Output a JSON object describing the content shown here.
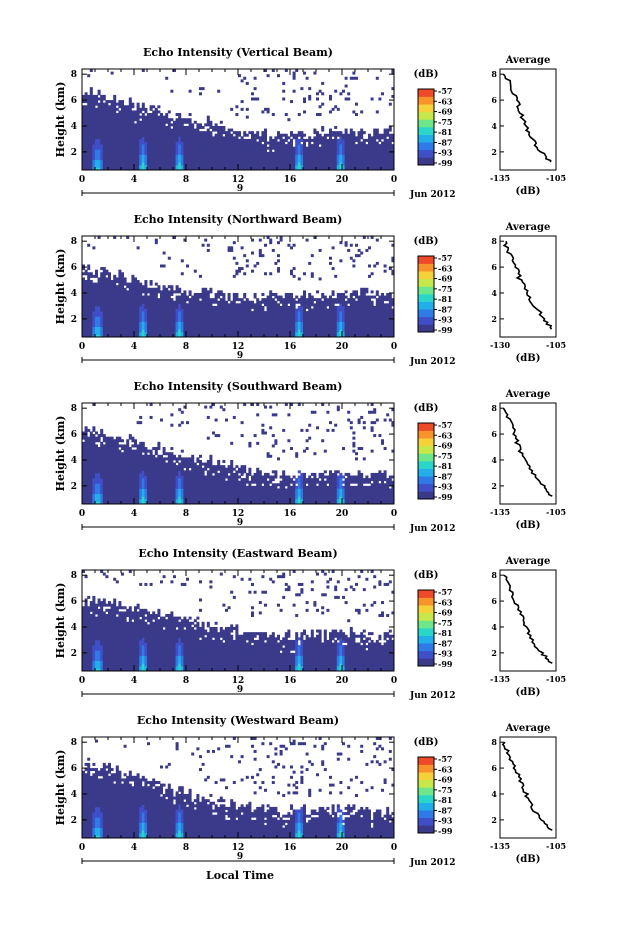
{
  "figure": {
    "date_label": "Jun 2012",
    "xlabel": "Local Time",
    "colorbar_unit": "(dB)",
    "colorbar_ticks": [
      "-57",
      "-63",
      "-69",
      "-75",
      "-81",
      "-87",
      "-93",
      "-99"
    ],
    "colormap": [
      "#3b3a8a",
      "#3f4fc8",
      "#2f7ae6",
      "#22aee8",
      "#2ad6c8",
      "#6ee68a",
      "#c6e84a",
      "#f6d23a",
      "#f8932c",
      "#ee4a2a"
    ],
    "profile_title": "Average",
    "profile_xlabel": "(dB)"
  },
  "chart_data": [
    {
      "type": "heatmap",
      "title": "Echo Intensity (Vertical Beam)",
      "ylabel": "Height (km)",
      "x_ticks": [
        "0",
        "4",
        "8",
        "12",
        "16",
        "20",
        "0"
      ],
      "x_day_label": "9",
      "y_ticks": [
        "2",
        "4",
        "6",
        "8"
      ],
      "xlim": [
        0,
        24
      ],
      "ylim": [
        0.6,
        8.4
      ],
      "top_height_km": [
        6.5,
        6.3,
        5.9,
        5.7,
        5.4,
        5.2,
        4.9,
        4.7,
        4.5,
        4.3,
        4.1,
        3.8,
        3.5,
        3.4,
        3.3,
        3.3,
        3.3,
        3.4,
        3.5,
        3.6,
        3.6,
        3.5,
        3.5,
        3.5
      ],
      "strong_echo_time_h": [
        1.1,
        4.6,
        7.4,
        16.6,
        19.8
      ],
      "profile": {
        "heights": [
          8.0,
          7.0,
          6.0,
          5.0,
          4.0,
          3.0,
          2.0,
          1.2
        ],
        "values": [
          -132,
          -129,
          -126,
          -124,
          -121,
          -118,
          -113,
          -108
        ],
        "xlim": [
          -135,
          -105
        ],
        "xticks": [
          "-135",
          "-105"
        ]
      }
    },
    {
      "type": "heatmap",
      "title": "Echo Intensity (Northward Beam)",
      "ylabel": "Height (km)",
      "x_ticks": [
        "0",
        "4",
        "8",
        "12",
        "16",
        "20",
        "0"
      ],
      "x_day_label": "9",
      "y_ticks": [
        "2",
        "4",
        "6",
        "8"
      ],
      "xlim": [
        0,
        24
      ],
      "ylim": [
        0.6,
        8.4
      ],
      "top_height_km": [
        5.8,
        5.6,
        5.4,
        5.1,
        4.9,
        4.7,
        4.5,
        4.3,
        4.1,
        4.0,
        3.8,
        3.7,
        3.6,
        3.6,
        3.7,
        3.7,
        3.8,
        3.8,
        3.8,
        3.9,
        3.9,
        4.0,
        4.0,
        4.0
      ],
      "strong_echo_time_h": [
        1.1,
        4.6,
        7.4,
        16.6,
        19.8
      ],
      "profile": {
        "heights": [
          8.0,
          7.0,
          6.0,
          5.0,
          4.0,
          3.0,
          2.0,
          1.2
        ],
        "values": [
          -128,
          -126,
          -123,
          -121,
          -118,
          -115,
          -110,
          -107
        ],
        "xlim": [
          -130,
          -105
        ],
        "xticks": [
          "-130",
          "-105"
        ]
      }
    },
    {
      "type": "heatmap",
      "title": "Echo Intensity (Southward Beam)",
      "ylabel": "Height (km)",
      "x_ticks": [
        "0",
        "4",
        "8",
        "12",
        "16",
        "20",
        "0"
      ],
      "x_day_label": "9",
      "y_ticks": [
        "2",
        "4",
        "6",
        "8"
      ],
      "xlim": [
        0,
        24
      ],
      "ylim": [
        0.6,
        8.4
      ],
      "top_height_km": [
        6.3,
        6.1,
        5.8,
        5.6,
        5.3,
        5.0,
        4.7,
        4.4,
        4.2,
        4.0,
        3.8,
        3.5,
        3.3,
        3.1,
        3.0,
        2.9,
        2.9,
        2.9,
        3.0,
        3.0,
        3.0,
        2.9,
        2.8,
        2.7
      ],
      "strong_echo_time_h": [
        1.1,
        4.6,
        7.4,
        16.6,
        19.8
      ],
      "profile": {
        "heights": [
          8.0,
          7.0,
          6.0,
          5.0,
          4.0,
          3.0,
          2.0,
          1.2
        ],
        "values": [
          -133,
          -130,
          -127,
          -125,
          -122,
          -118,
          -112,
          -107
        ],
        "xlim": [
          -135,
          -105
        ],
        "xticks": [
          "-135",
          "-105"
        ]
      }
    },
    {
      "type": "heatmap",
      "title": "Echo Intensity (Eastward Beam)",
      "ylabel": "Height (km)",
      "x_ticks": [
        "0",
        "4",
        "8",
        "12",
        "16",
        "20",
        "0"
      ],
      "x_day_label": "9",
      "y_ticks": [
        "2",
        "4",
        "6",
        "8"
      ],
      "xlim": [
        0,
        24
      ],
      "ylim": [
        0.6,
        8.4
      ],
      "top_height_km": [
        6.2,
        6.0,
        5.7,
        5.5,
        5.3,
        5.1,
        4.8,
        4.6,
        4.4,
        4.1,
        3.9,
        3.7,
        3.5,
        3.4,
        3.3,
        3.3,
        3.3,
        3.4,
        3.4,
        3.5,
        3.5,
        3.4,
        3.4,
        3.3
      ],
      "strong_echo_time_h": [
        1.1,
        4.6,
        7.4,
        16.6,
        19.8
      ],
      "profile": {
        "heights": [
          8.0,
          7.0,
          6.0,
          5.0,
          4.0,
          3.0,
          2.0,
          1.2
        ],
        "values": [
          -133,
          -130,
          -127,
          -124,
          -121,
          -118,
          -113,
          -107
        ],
        "xlim": [
          -135,
          -105
        ],
        "xticks": [
          "-135",
          "-105"
        ]
      }
    },
    {
      "type": "heatmap",
      "title": "Echo Intensity (Westward Beam)",
      "ylabel": "Height (km)",
      "x_ticks": [
        "0",
        "4",
        "8",
        "12",
        "16",
        "20",
        "0"
      ],
      "x_day_label": "9",
      "y_ticks": [
        "2",
        "4",
        "6",
        "8"
      ],
      "xlim": [
        0,
        24
      ],
      "ylim": [
        0.6,
        8.4
      ],
      "top_height_km": [
        6.4,
        6.2,
        5.9,
        5.6,
        5.3,
        5.0,
        4.6,
        4.3,
        4.0,
        3.8,
        3.5,
        3.3,
        3.1,
        2.9,
        2.8,
        2.7,
        2.7,
        2.7,
        2.8,
        2.8,
        2.8,
        2.7,
        2.6,
        2.6
      ],
      "strong_echo_time_h": [
        1.1,
        4.6,
        7.4,
        16.6,
        19.8
      ],
      "profile": {
        "heights": [
          8.0,
          7.0,
          6.0,
          5.0,
          4.0,
          3.0,
          2.0,
          1.2
        ],
        "values": [
          -133,
          -130,
          -127,
          -124,
          -121,
          -118,
          -113,
          -107
        ],
        "xlim": [
          -135,
          -105
        ],
        "xticks": [
          "-135",
          "-105"
        ]
      }
    }
  ]
}
